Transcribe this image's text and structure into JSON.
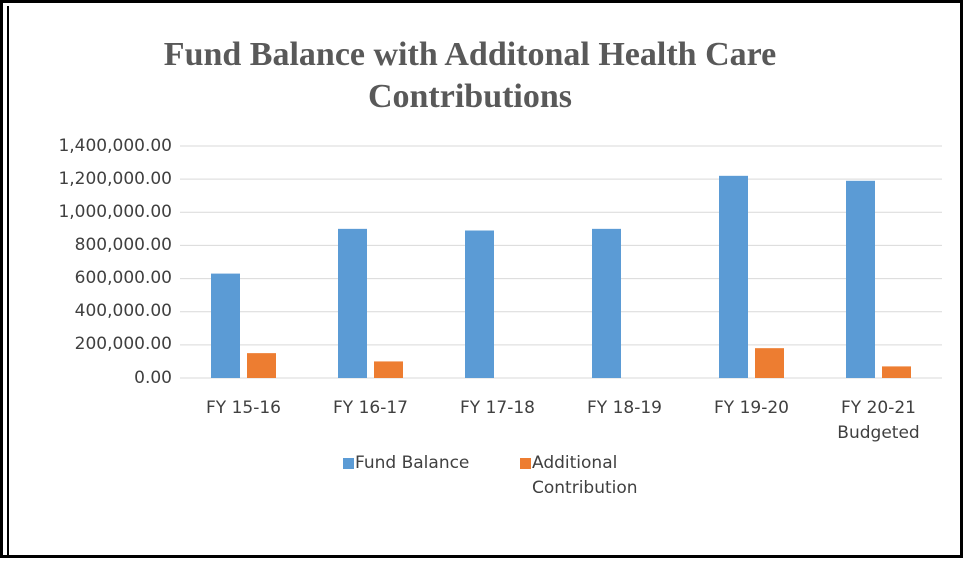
{
  "chart_data": {
    "type": "bar",
    "title": "Fund Balance with Additonal Health Care Contributions",
    "categories": [
      "FY 15-16",
      "FY 16-17",
      "FY 17-18",
      "FY 18-19",
      "FY 19-20",
      "FY 20-21 Budgeted"
    ],
    "series": [
      {
        "name": "Fund Balance",
        "color": "#5b9bd5",
        "values": [
          630000,
          900000,
          890000,
          900000,
          1220000,
          1190000
        ]
      },
      {
        "name": "Additional Contribution",
        "color": "#ed7d31",
        "values": [
          150000,
          100000,
          0,
          0,
          180000,
          70000
        ]
      }
    ],
    "ylim": [
      0,
      1400000
    ],
    "yticks": [
      {
        "value": 0,
        "label": "0.00"
      },
      {
        "value": 200000,
        "label": "200,000.00"
      },
      {
        "value": 400000,
        "label": "400,000.00"
      },
      {
        "value": 600000,
        "label": "600,000.00"
      },
      {
        "value": 800000,
        "label": "800,000.00"
      },
      {
        "value": 1000000,
        "label": "1,000,000.00"
      },
      {
        "value": 1200000,
        "label": "1,200,000.00"
      },
      {
        "value": 1400000,
        "label": "1,400,000.00"
      }
    ],
    "grid": true,
    "legend": "bottom"
  }
}
